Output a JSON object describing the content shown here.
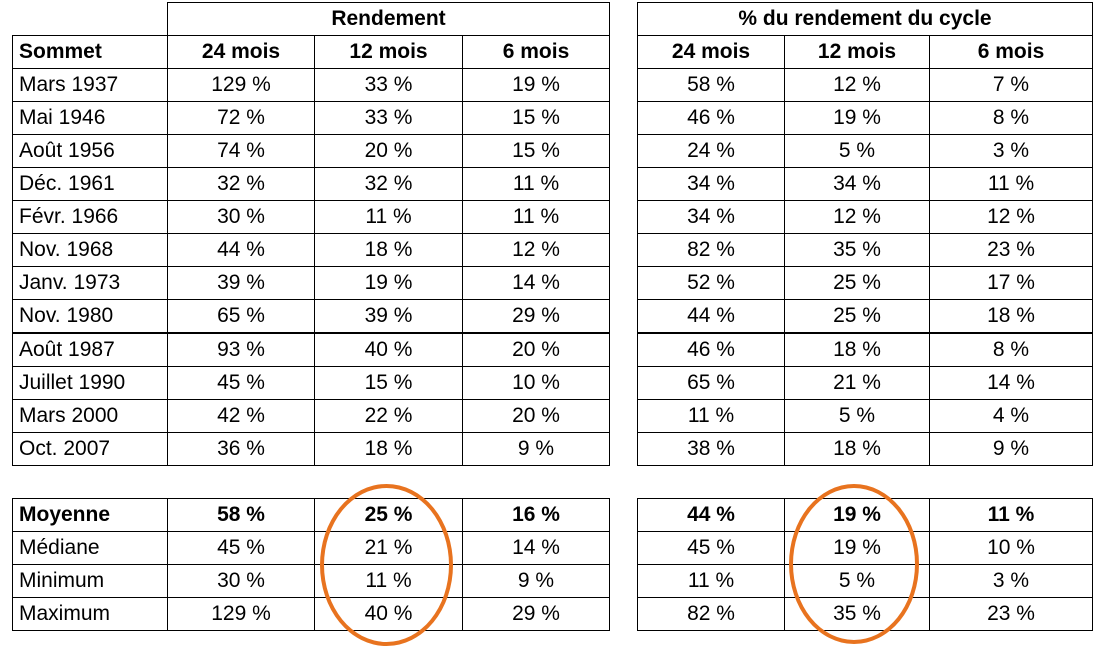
{
  "headers": {
    "group_left": "Rendement",
    "group_right": "% du rendement du cycle",
    "first_col": "Sommet",
    "periods": [
      "24 mois",
      "12 mois",
      "6 mois"
    ]
  },
  "rows": [
    {
      "label": "Mars 1937",
      "rend": [
        "129 %",
        "33 %",
        "19 %"
      ],
      "pct": [
        "58 %",
        "12 %",
        "7 %"
      ]
    },
    {
      "label": "Mai 1946",
      "rend": [
        "72 %",
        "33 %",
        "15 %"
      ],
      "pct": [
        "46 %",
        "19 %",
        "8 %"
      ]
    },
    {
      "label": "Août 1956",
      "rend": [
        "74 %",
        "20 %",
        "15 %"
      ],
      "pct": [
        "24 %",
        "5 %",
        "3 %"
      ]
    },
    {
      "label": "Déc. 1961",
      "rend": [
        "32 %",
        "32 %",
        "11 %"
      ],
      "pct": [
        "34 %",
        "34 %",
        "11 %"
      ]
    },
    {
      "label": "Févr. 1966",
      "rend": [
        "30 %",
        "11 %",
        "11 %"
      ],
      "pct": [
        "34 %",
        "12 %",
        "12 %"
      ]
    },
    {
      "label": "Nov. 1968",
      "rend": [
        "44 %",
        "18 %",
        "12 %"
      ],
      "pct": [
        "82 %",
        "35 %",
        "23 %"
      ]
    },
    {
      "label": "Janv. 1973",
      "rend": [
        "39 %",
        "19 %",
        "14 %"
      ],
      "pct": [
        "52 %",
        "25 %",
        "17 %"
      ]
    },
    {
      "label": "Nov. 1980",
      "rend": [
        "65 %",
        "39 %",
        "29 %"
      ],
      "pct": [
        "44 %",
        "25 %",
        "18 %"
      ]
    },
    {
      "label": "Août 1987",
      "rend": [
        "93 %",
        "40 %",
        "20 %"
      ],
      "pct": [
        "46 %",
        "18 %",
        "8 %"
      ]
    },
    {
      "label": "Juillet 1990",
      "rend": [
        "45 %",
        "15 %",
        "10 %"
      ],
      "pct": [
        "65 %",
        "21 %",
        "14 %"
      ]
    },
    {
      "label": "Mars 2000",
      "rend": [
        "42 %",
        "22 %",
        "20 %"
      ],
      "pct": [
        "11 %",
        "5 %",
        "4 %"
      ]
    },
    {
      "label": "Oct. 2007",
      "rend": [
        "36 %",
        "18 %",
        "9 %"
      ],
      "pct": [
        "38 %",
        "18 %",
        "9 %"
      ]
    }
  ],
  "summary": [
    {
      "label": "Moyenne",
      "rend": [
        "58 %",
        "25 %",
        "16 %"
      ],
      "pct": [
        "44 %",
        "19 %",
        "11 %"
      ]
    },
    {
      "label": "Médiane",
      "rend": [
        "45 %",
        "21 %",
        "14 %"
      ],
      "pct": [
        "45 %",
        "19 %",
        "10 %"
      ]
    },
    {
      "label": "Minimum",
      "rend": [
        "30 %",
        "11 %",
        "9 %"
      ],
      "pct": [
        "11 %",
        "5 %",
        "3 %"
      ]
    },
    {
      "label": "Maximum",
      "rend": [
        "129 %",
        "40 %",
        "29 %"
      ],
      "pct": [
        "82 %",
        "35 %",
        "23 %"
      ]
    }
  ],
  "highlight_color": "#e8731f",
  "highlighted_column": "12 mois"
}
